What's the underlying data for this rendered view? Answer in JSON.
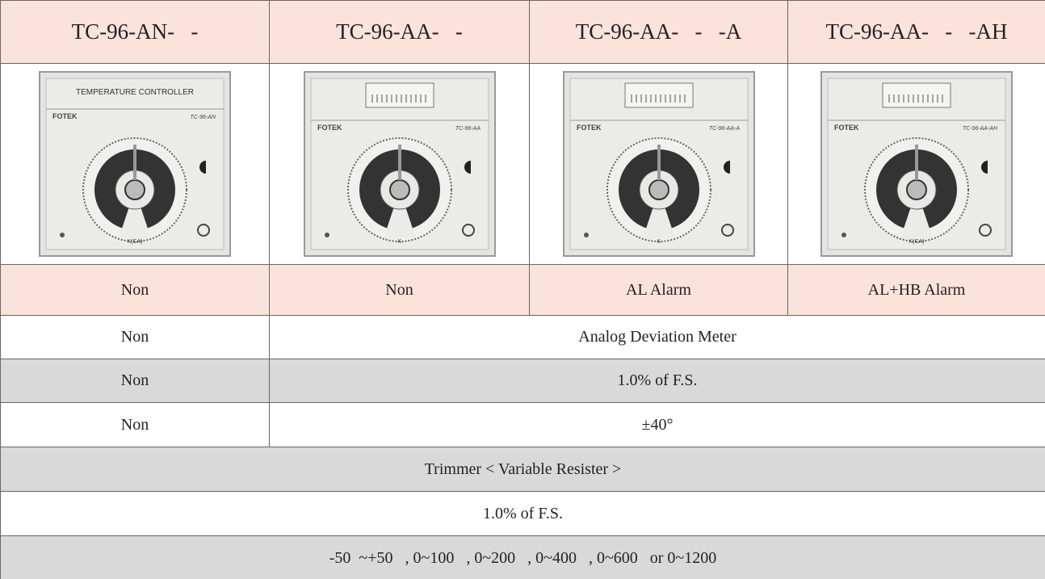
{
  "table": {
    "header": [
      "TC-96-AN-   -",
      "TC-96-AA-   -",
      "TC-96-AA-   -   -A",
      "TC-96-AA-   -   -AH"
    ],
    "devices": [
      {
        "title": "TEMPERATURE CONTROLLER",
        "brand": "FOTEK",
        "model": "TC-96-AN",
        "scale": "K(CA)"
      },
      {
        "brand": "FOTEK",
        "model": "TC-96-AA",
        "scale": "K"
      },
      {
        "brand": "FOTEK",
        "model": "TC-96-AA-A",
        "scale": "K"
      },
      {
        "brand": "FOTEK",
        "model": "TC-96-AA-AH",
        "scale": "K(CA)"
      }
    ],
    "alarm": [
      "Non",
      "Non",
      "AL Alarm",
      "AL+HB Alarm"
    ],
    "meter": [
      "Non",
      "Analog Deviation Meter"
    ],
    "accuracy": [
      "Non",
      "1.0% of F.S."
    ],
    "range": [
      "Non",
      "±40°"
    ],
    "setting": "Trimmer < Variable Resister >",
    "setting_accuracy": "1.0% of F.S.",
    "ranges": "-50  ~+50   , 0~100   , 0~200   , 0~400   , 0~600   or 0~1200"
  }
}
